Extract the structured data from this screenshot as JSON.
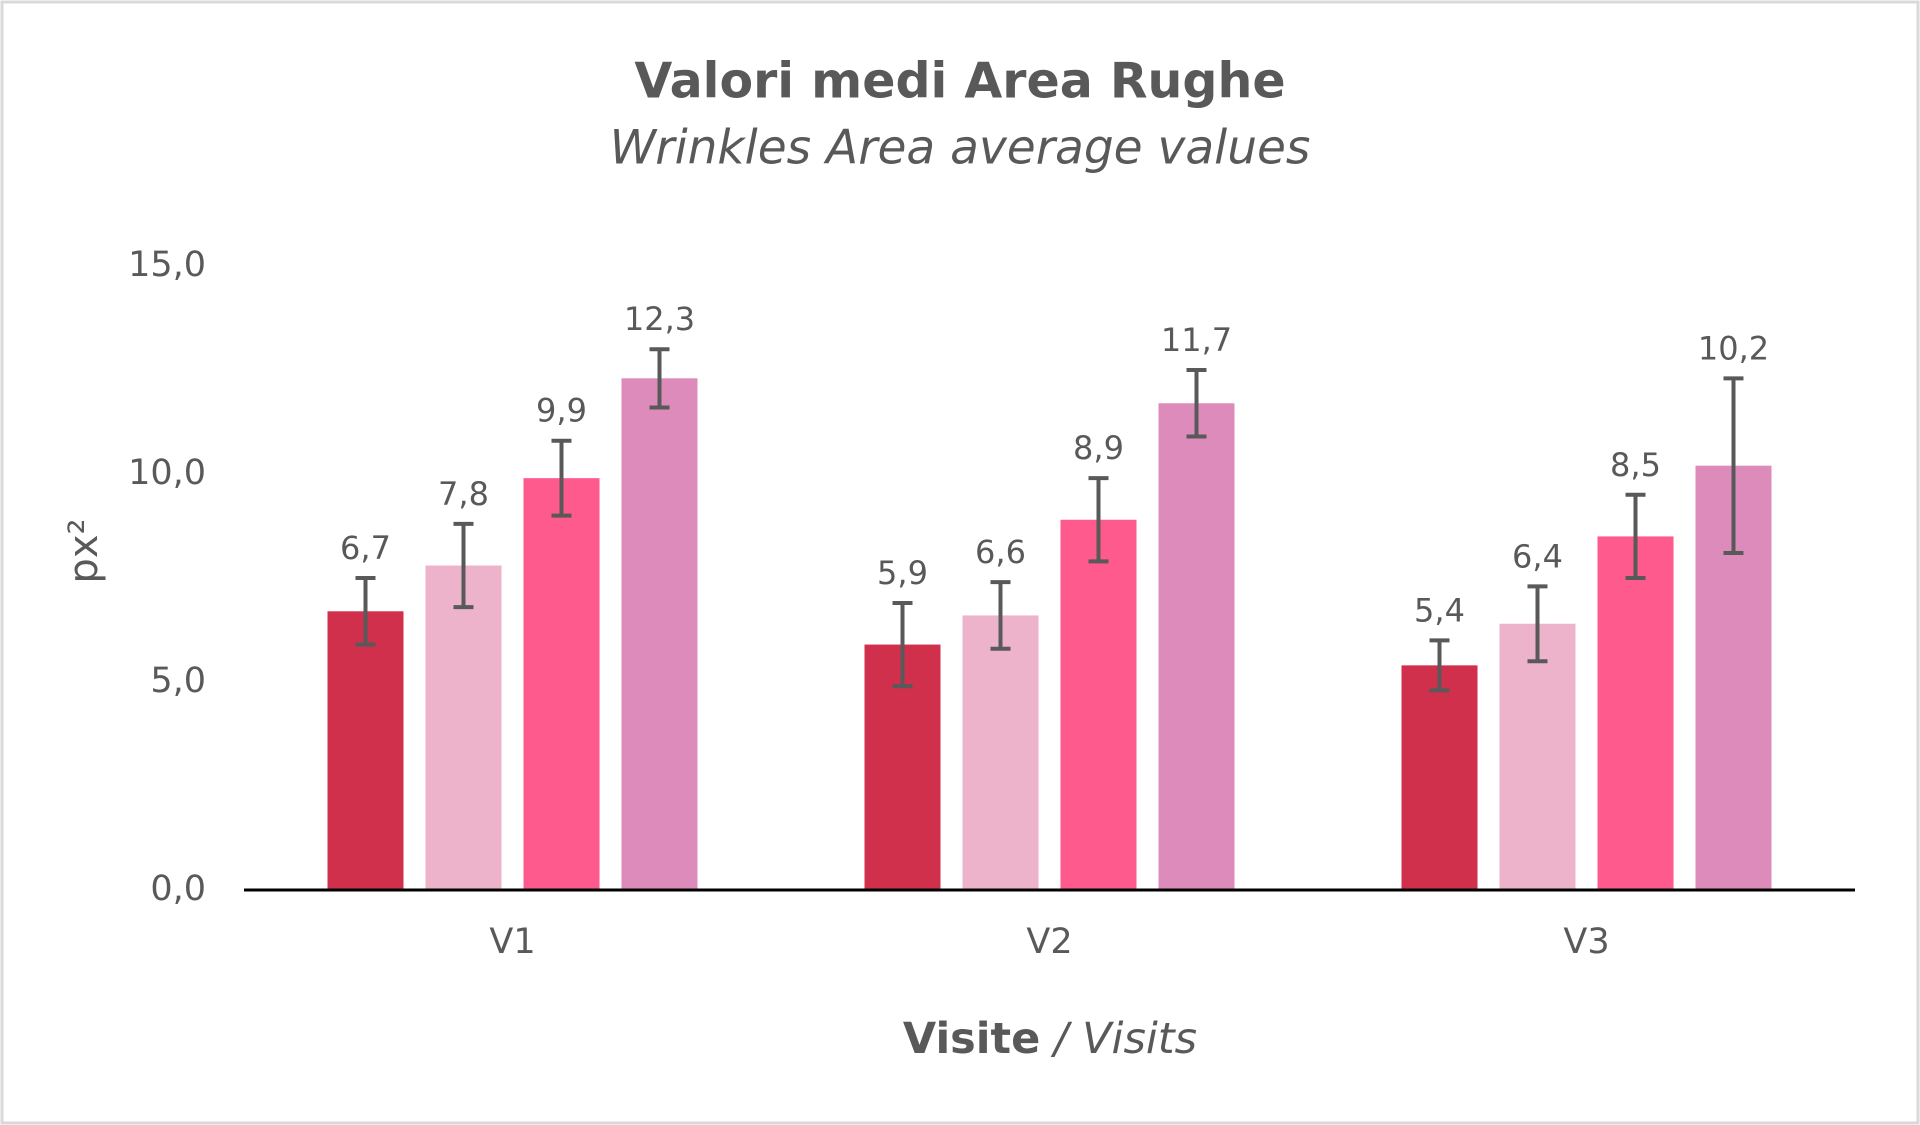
{
  "chart_data": {
    "type": "bar",
    "title": "Valori medi Area Rughe",
    "subtitle": "Wrinkles Area average values",
    "ylabel": "px²",
    "xlabel": "Visite",
    "xlabel_en": "/ Visits",
    "categories": [
      "V1",
      "V2",
      "V3"
    ],
    "series": [
      {
        "color": "#d0304b",
        "values": [
          6.7,
          5.9,
          5.4
        ],
        "value_labels": [
          "6,7",
          "5,9",
          "5,4"
        ],
        "errors": [
          0.8,
          1.0,
          0.6
        ]
      },
      {
        "color": "#edb3cb",
        "values": [
          7.8,
          6.6,
          6.4
        ],
        "value_labels": [
          "7,8",
          "6,6",
          "6,4"
        ],
        "errors": [
          1.0,
          0.8,
          0.9
        ]
      },
      {
        "color": "#fe5a8d",
        "values": [
          9.9,
          8.9,
          8.5
        ],
        "value_labels": [
          "9,9",
          "8,9",
          "8,5"
        ],
        "errors": [
          0.9,
          1.0,
          1.0
        ]
      },
      {
        "color": "#dc8bba",
        "values": [
          12.3,
          11.7,
          10.2
        ],
        "value_labels": [
          "12,3",
          "11,7",
          "10,2"
        ],
        "errors": [
          0.7,
          0.8,
          2.1
        ]
      }
    ],
    "ylim": [
      0,
      15
    ],
    "yticks": [
      {
        "value": 0,
        "label": "0,0"
      },
      {
        "value": 5,
        "label": "5,0"
      },
      {
        "value": 10,
        "label": "10,0"
      },
      {
        "value": 15,
        "label": "15,0"
      }
    ],
    "grid": false
  }
}
